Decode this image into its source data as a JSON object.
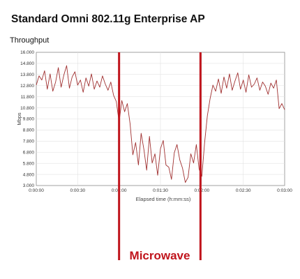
{
  "chart_data": {
    "type": "line",
    "title": "Standard Omni 802.11g Enterprise AP",
    "subtitle": "Throughput",
    "xlabel": "Elapsed time (h:mm:ss)",
    "ylabel": "Mbps",
    "xlim": [
      0,
      180
    ],
    "ylim": [
      3,
      16
    ],
    "x_ticks": [
      "0:00:00",
      "0:00:30",
      "0:01:00",
      "0:01:30",
      "0:02:00",
      "0:02:30",
      "0:03:00"
    ],
    "y_ticks": [
      "3.000",
      "4.800",
      "5.800",
      "6.800",
      "7.800",
      "8.800",
      "9.800",
      "10.800",
      "11.800",
      "12.800",
      "13.800",
      "14.800",
      "16.000"
    ],
    "grid": true,
    "line_color": "#a03030",
    "annotation": {
      "label": "Microwave",
      "start": 60,
      "end": 119,
      "color": "#c0141c"
    },
    "series": [
      {
        "x": [
          0,
          2,
          4,
          6,
          8,
          10,
          12,
          14,
          16,
          18,
          20,
          22,
          24,
          26,
          28,
          30,
          32,
          34,
          36,
          38,
          40,
          42,
          44,
          46,
          48,
          50,
          52,
          54,
          56,
          58,
          60,
          62,
          64,
          66,
          68,
          70,
          72,
          74,
          76,
          78,
          80,
          82,
          84,
          86,
          88,
          90,
          92,
          94,
          96,
          98,
          100,
          102,
          104,
          106,
          108,
          110,
          112,
          114,
          116,
          118,
          120,
          122,
          124,
          126,
          128,
          130,
          132,
          134,
          136,
          138,
          140,
          142,
          144,
          146,
          148,
          150,
          152,
          154,
          156,
          158,
          160,
          162,
          164,
          166,
          168,
          170,
          172,
          174,
          176,
          178,
          180
        ],
        "values": [
          12.8,
          13.7,
          13.3,
          14.2,
          12.4,
          13.9,
          12.2,
          13.1,
          14.5,
          12.6,
          13.8,
          14.7,
          12.5,
          13.6,
          14.1,
          12.8,
          13.3,
          12.1,
          13.5,
          12.7,
          13.9,
          12.4,
          13.2,
          12.6,
          13.7,
          12.9,
          12.3,
          13.1,
          11.8,
          11.2,
          9.2,
          11.3,
          10.2,
          11.0,
          9.0,
          6.0,
          7.2,
          5.0,
          8.1,
          6.5,
          4.5,
          7.8,
          5.2,
          6.1,
          4.0,
          6.6,
          7.4,
          5.0,
          4.8,
          3.6,
          6.2,
          7.0,
          5.5,
          4.7,
          3.3,
          3.8,
          6.1,
          5.2,
          7.0,
          4.6,
          3.9,
          7.2,
          9.8,
          11.5,
          12.8,
          12.2,
          13.4,
          12.0,
          13.6,
          12.5,
          13.9,
          12.3,
          13.2,
          14.0,
          12.4,
          13.3,
          12.1,
          13.8,
          12.6,
          12.9,
          13.5,
          12.3,
          13.1,
          12.7,
          11.9,
          13.0,
          12.5,
          13.3,
          10.5,
          11.0,
          10.4
        ]
      }
    ]
  }
}
